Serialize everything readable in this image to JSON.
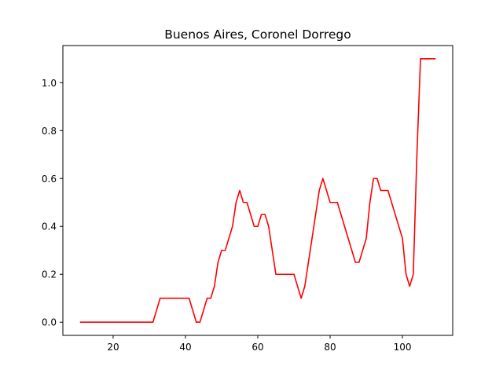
{
  "chart_data": {
    "type": "line",
    "title": "Buenos Aires, Coronel Dorrego",
    "xlabel": "",
    "ylabel": "",
    "xlim": [
      6.1,
      113.9
    ],
    "ylim": [
      -0.055,
      1.155
    ],
    "xticks": [
      20,
      40,
      60,
      80,
      100
    ],
    "xtick_labels": [
      "20",
      "40",
      "60",
      "80",
      "100"
    ],
    "yticks": [
      0.0,
      0.2,
      0.4,
      0.6,
      0.8,
      1.0
    ],
    "ytick_labels": [
      "0.0",
      "0.2",
      "0.4",
      "0.6",
      "0.8",
      "1.0"
    ],
    "grid": false,
    "series": [
      {
        "color": "#ff0000",
        "x": [
          11,
          31,
          33,
          41,
          43,
          44,
          46,
          47,
          48,
          49,
          50,
          51,
          53,
          54,
          55,
          56,
          57,
          59,
          60,
          61,
          62,
          63,
          65,
          70,
          72,
          73,
          74,
          76,
          77,
          78,
          80,
          82,
          84,
          86,
          87,
          88,
          90,
          91,
          92,
          93,
          94,
          96,
          98,
          100,
          101,
          102,
          103,
          104,
          105,
          106,
          109
        ],
        "y": [
          0.0,
          0.0,
          0.1,
          0.1,
          0.0,
          0.0,
          0.1,
          0.1,
          0.15,
          0.25,
          0.3,
          0.3,
          0.4,
          0.5,
          0.55,
          0.5,
          0.5,
          0.4,
          0.4,
          0.45,
          0.45,
          0.4,
          0.2,
          0.2,
          0.1,
          0.15,
          0.25,
          0.45,
          0.55,
          0.6,
          0.5,
          0.5,
          0.4,
          0.3,
          0.25,
          0.25,
          0.35,
          0.5,
          0.6,
          0.6,
          0.55,
          0.55,
          0.45,
          0.35,
          0.2,
          0.15,
          0.2,
          0.7,
          1.1,
          1.1,
          1.1
        ]
      }
    ]
  }
}
